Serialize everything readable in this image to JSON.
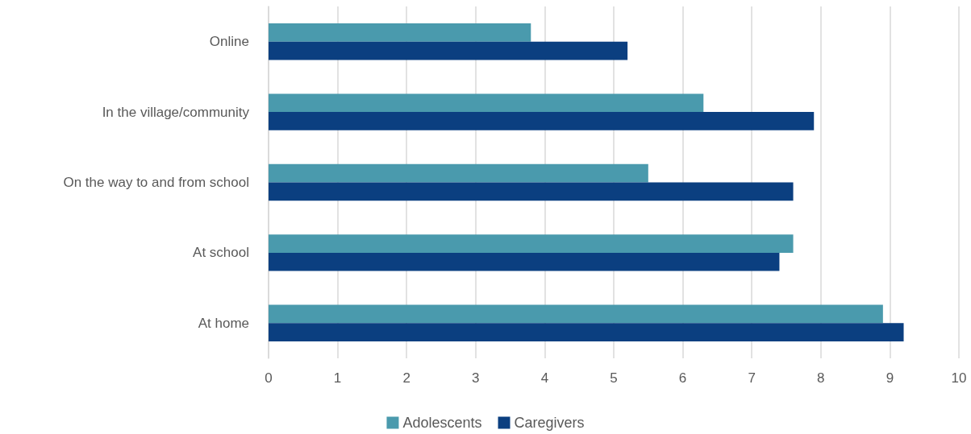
{
  "chart_data": {
    "type": "bar",
    "orientation": "horizontal",
    "categories": [
      "Online",
      "In the village/community",
      "On the way to and from school",
      "At school",
      "At home"
    ],
    "series": [
      {
        "name": "Adolescents",
        "color": "#4a9aad",
        "values": [
          3.8,
          6.3,
          5.5,
          7.6,
          8.9
        ]
      },
      {
        "name": "Caregivers",
        "color": "#0b3f80",
        "values": [
          5.2,
          7.9,
          7.6,
          7.4,
          9.2
        ]
      }
    ],
    "xlim": [
      0,
      10
    ],
    "xticks": [
      0,
      1,
      2,
      3,
      4,
      5,
      6,
      7,
      8,
      9,
      10
    ],
    "grid": "x",
    "legend": "bottom"
  }
}
